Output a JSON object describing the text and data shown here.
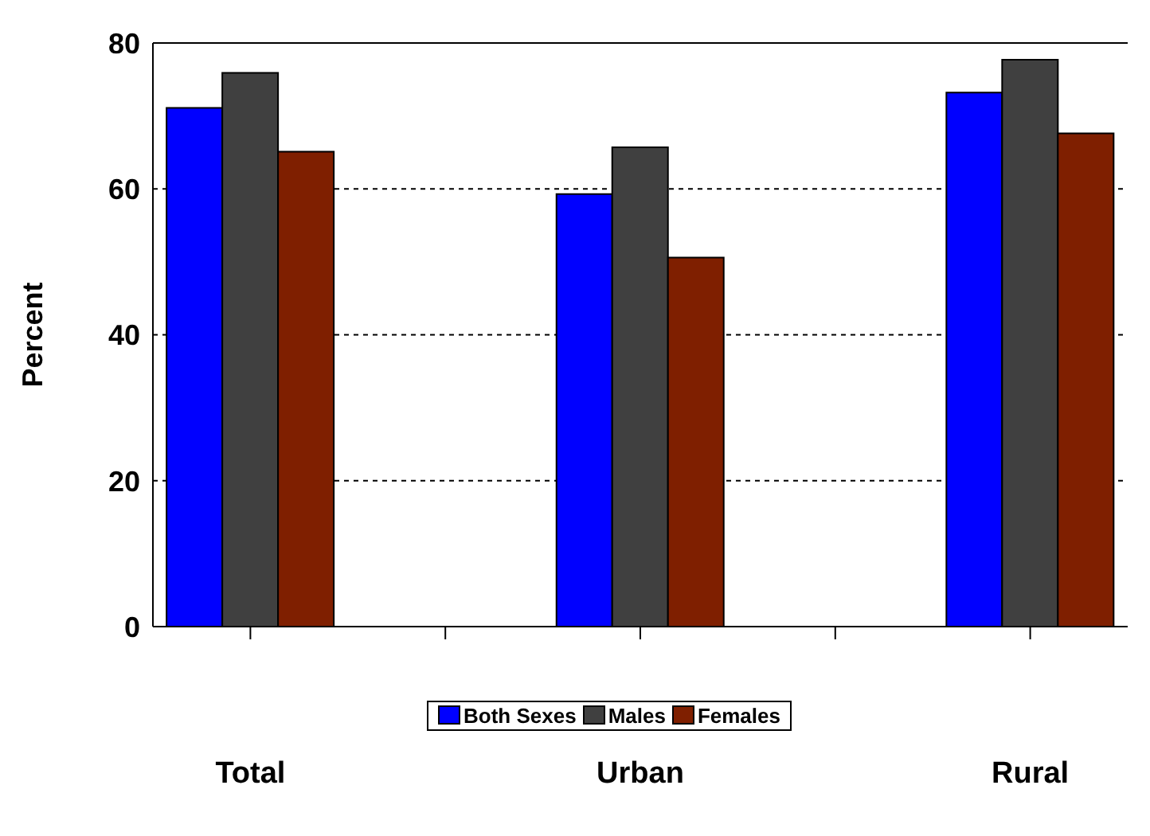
{
  "chart_data": {
    "type": "bar",
    "ylabel": "Percent",
    "categories": [
      "Total",
      null,
      "Urban",
      null,
      "Rural"
    ],
    "series": [
      {
        "name": "Both Sexes",
        "color": "#0000ff",
        "values": [
          71.1,
          null,
          59.3,
          null,
          73.2
        ]
      },
      {
        "name": "Males",
        "color": "#404040",
        "values": [
          75.9,
          null,
          65.7,
          null,
          77.7
        ]
      },
      {
        "name": "Females",
        "color": "#7f1f00",
        "values": [
          65.1,
          null,
          50.6,
          null,
          67.6
        ]
      }
    ],
    "ylim": [
      0,
      80
    ],
    "yticks": [
      0,
      20,
      40,
      60,
      80
    ],
    "grid": "y",
    "legend": "bottom"
  }
}
